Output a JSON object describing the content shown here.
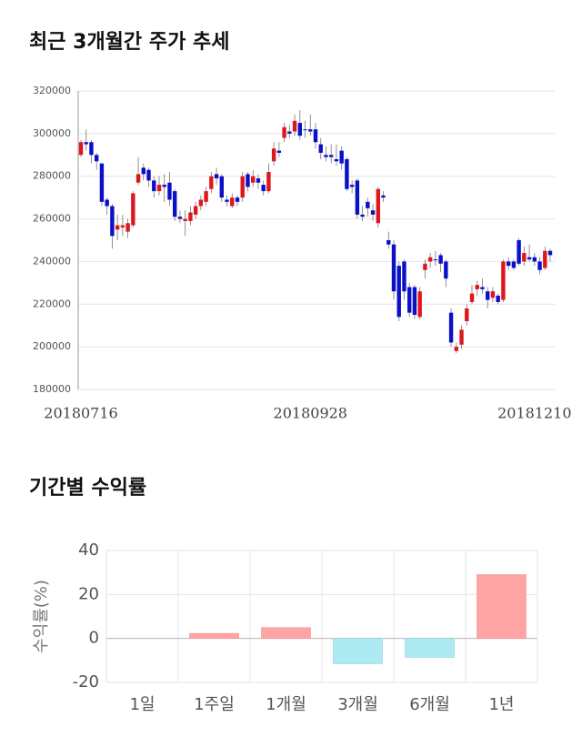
{
  "chart_data": [
    {
      "type": "candlestick",
      "title": "최근 3개월간 주가 추세",
      "categories": [
        "20180716",
        null,
        null,
        null,
        null,
        null,
        null,
        null,
        null,
        null,
        null,
        null,
        null,
        null,
        null,
        null,
        null,
        null,
        null,
        null,
        null,
        null,
        null,
        null,
        null,
        null,
        null,
        null,
        null,
        null,
        null,
        null,
        null,
        null,
        null,
        null,
        null,
        null,
        null,
        null,
        null,
        null,
        null,
        null,
        "20180928",
        null,
        null,
        null,
        null,
        null,
        null,
        null,
        null,
        null,
        null,
        null,
        null,
        null,
        null,
        null,
        null,
        null,
        null,
        null,
        null,
        null,
        null,
        null,
        null,
        null,
        null,
        null,
        null,
        null,
        null,
        null,
        null,
        null,
        null,
        null,
        null,
        null,
        null,
        null,
        null,
        null,
        null,
        "20181210",
        null,
        null,
        null
      ],
      "open": [
        290000,
        296000,
        296000,
        290000,
        286000,
        269000,
        266000,
        255000,
        256000,
        254000,
        257000,
        277000,
        284000,
        283000,
        278000,
        273000,
        276000,
        277000,
        273000,
        261000,
        259000,
        259000,
        262000,
        266000,
        268000,
        274000,
        281000,
        280000,
        269000,
        266000,
        270000,
        270000,
        281000,
        277000,
        279000,
        276000,
        273000,
        287000,
        292000,
        298000,
        301000,
        301000,
        305000,
        302000,
        302000,
        302000,
        295000,
        290000,
        290000,
        288000,
        292000,
        288000,
        276000,
        278000,
        262000,
        268000,
        264000,
        258000,
        271000,
        250000,
        248000,
        238000,
        240000,
        228000,
        228000,
        214000,
        236000,
        240000,
        241000,
        243000,
        240000,
        216000,
        198000,
        201000,
        212000,
        221000,
        227000,
        228000,
        226000,
        223000,
        224000,
        222000,
        240000,
        240000,
        250000,
        240000,
        242000,
        242000,
        240000,
        237000,
        245000
      ],
      "high": [
        297000,
        302000,
        297000,
        291000,
        286000,
        270000,
        267000,
        262000,
        262000,
        260000,
        273000,
        289000,
        286000,
        284000,
        280000,
        280000,
        281000,
        282000,
        274000,
        264000,
        264000,
        266000,
        268000,
        271000,
        275000,
        282000,
        284000,
        281000,
        271000,
        272000,
        271000,
        282000,
        282000,
        283000,
        281000,
        278000,
        286000,
        296000,
        296000,
        305000,
        304000,
        309000,
        311000,
        306000,
        309000,
        305000,
        298000,
        294000,
        295000,
        295000,
        294000,
        289000,
        278000,
        279000,
        266000,
        270000,
        267000,
        275000,
        273000,
        254000,
        250000,
        240000,
        241000,
        230000,
        229000,
        228000,
        241000,
        244000,
        245000,
        244000,
        241000,
        218000,
        202000,
        210000,
        220000,
        229000,
        231000,
        232000,
        228000,
        228000,
        225000,
        241000,
        242000,
        241000,
        251000,
        247000,
        248000,
        244000,
        242000,
        247000,
        246000
      ],
      "low": [
        289000,
        292000,
        286000,
        283000,
        266000,
        262000,
        246000,
        250000,
        252000,
        251000,
        256000,
        276000,
        278000,
        275000,
        270000,
        271000,
        268000,
        266000,
        259000,
        258000,
        252000,
        257000,
        260000,
        264000,
        266000,
        272000,
        276000,
        268000,
        266000,
        265000,
        266000,
        268000,
        273000,
        275000,
        274000,
        271000,
        272000,
        285000,
        289000,
        296000,
        298000,
        299000,
        297000,
        298000,
        299000,
        293000,
        288000,
        287000,
        286000,
        285000,
        283000,
        273000,
        272000,
        260000,
        259000,
        261000,
        259000,
        256000,
        268000,
        246000,
        222000,
        212000,
        222000,
        214000,
        213000,
        213000,
        232000,
        237000,
        238000,
        235000,
        228000,
        200000,
        197000,
        199000,
        210000,
        220000,
        224000,
        225000,
        218000,
        221000,
        220000,
        221000,
        236000,
        236000,
        238000,
        238000,
        240000,
        238000,
        234000,
        236000,
        240000
      ],
      "close": [
        296000,
        295000,
        290000,
        287000,
        268000,
        266000,
        252000,
        257000,
        257000,
        258000,
        272000,
        281000,
        281000,
        278000,
        273000,
        276000,
        275000,
        269000,
        261000,
        260000,
        260000,
        263000,
        266000,
        269000,
        273000,
        280000,
        279000,
        270000,
        268000,
        270000,
        268000,
        280000,
        275000,
        280000,
        277000,
        273000,
        282000,
        293000,
        291000,
        303000,
        300000,
        306000,
        299000,
        302000,
        301000,
        296000,
        291000,
        289000,
        289000,
        287000,
        286000,
        274000,
        275000,
        262000,
        261000,
        265000,
        262000,
        274000,
        270000,
        248000,
        226000,
        214000,
        226000,
        216000,
        215000,
        226000,
        239000,
        242000,
        241000,
        239000,
        232000,
        202000,
        200000,
        208000,
        218000,
        225000,
        229000,
        227000,
        222000,
        226000,
        221000,
        240000,
        238000,
        237000,
        239000,
        244000,
        241000,
        240000,
        236000,
        245000,
        243000
      ],
      "up_color": "#e0161d",
      "down_color": "#0a10c8",
      "ylim": [
        180000,
        320000
      ],
      "yticks": [
        180000,
        200000,
        220000,
        240000,
        260000,
        280000,
        300000,
        320000
      ],
      "grid": true
    },
    {
      "type": "bar",
      "title": "기간별 수익률",
      "ylabel": "수익률(%)",
      "categories": [
        "1일",
        "1주일",
        "1개월",
        "3개월",
        "6개월",
        "1년"
      ],
      "values": [
        0,
        2.3,
        4.9,
        -11.5,
        -8.6,
        29
      ],
      "positive_color": "#ffa4a4",
      "negative_color": "#aeeaf2",
      "ylim": [
        -20,
        40
      ],
      "yticks": [
        -20,
        0,
        20,
        40
      ],
      "grid": true
    }
  ]
}
